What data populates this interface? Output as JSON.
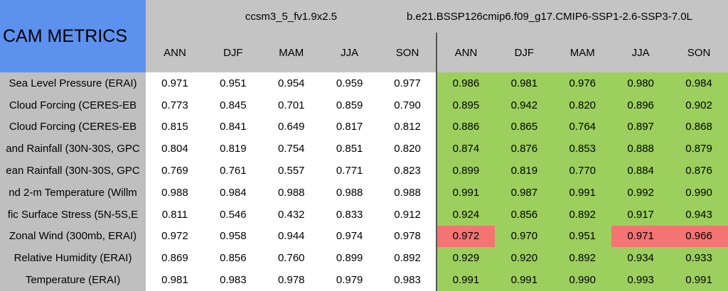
{
  "header": {
    "title": "CAM METRICS",
    "groups": [
      "ccsm3_5_fv1.9x2.5",
      "b.e21.BSSP126cmip6.f09_g17.CMIP6-SSP1-2.6-SSP3-7.0L"
    ],
    "seasons": [
      "ANN",
      "DJF",
      "MAM",
      "JJA",
      "SON",
      "ANN",
      "DJF",
      "MAM",
      "JJA",
      "SON"
    ]
  },
  "table": {
    "rows": [
      {
        "label": "Sea Level Pressure (ERAI)",
        "values": [
          "0.971",
          "0.951",
          "0.954",
          "0.959",
          "0.977",
          "0.986",
          "0.981",
          "0.976",
          "0.980",
          "0.984"
        ],
        "colors": [
          "#ffffff",
          "#ffffff",
          "#ffffff",
          "#ffffff",
          "#ffffff",
          "#9ccf5d",
          "#9ccf5d",
          "#9ccf5d",
          "#9ccf5d",
          "#9ccf5d"
        ]
      },
      {
        "label": "Cloud Forcing (CERES-EB",
        "values": [
          "0.773",
          "0.845",
          "0.701",
          "0.859",
          "0.790",
          "0.895",
          "0.942",
          "0.820",
          "0.896",
          "0.902"
        ],
        "colors": [
          "#ffffff",
          "#ffffff",
          "#ffffff",
          "#ffffff",
          "#ffffff",
          "#9ccf5d",
          "#9ccf5d",
          "#9ccf5d",
          "#9ccf5d",
          "#9ccf5d"
        ]
      },
      {
        "label": "Cloud Forcing (CERES-EB",
        "values": [
          "0.815",
          "0.841",
          "0.649",
          "0.817",
          "0.812",
          "0.886",
          "0.865",
          "0.764",
          "0.897",
          "0.868"
        ],
        "colors": [
          "#ffffff",
          "#ffffff",
          "#ffffff",
          "#ffffff",
          "#ffffff",
          "#9ccf5d",
          "#9ccf5d",
          "#9ccf5d",
          "#9ccf5d",
          "#9ccf5d"
        ]
      },
      {
        "label": "and Rainfall (30N-30S, GPC",
        "values": [
          "0.804",
          "0.819",
          "0.754",
          "0.851",
          "0.820",
          "0.874",
          "0.876",
          "0.853",
          "0.888",
          "0.879"
        ],
        "colors": [
          "#ffffff",
          "#ffffff",
          "#ffffff",
          "#ffffff",
          "#ffffff",
          "#9ccf5d",
          "#9ccf5d",
          "#9ccf5d",
          "#9ccf5d",
          "#9ccf5d"
        ]
      },
      {
        "label": "ean Rainfall (30N-30S, GPC",
        "values": [
          "0.769",
          "0.761",
          "0.557",
          "0.771",
          "0.823",
          "0.899",
          "0.819",
          "0.770",
          "0.884",
          "0.876"
        ],
        "colors": [
          "#ffffff",
          "#ffffff",
          "#ffffff",
          "#ffffff",
          "#ffffff",
          "#9ccf5d",
          "#9ccf5d",
          "#9ccf5d",
          "#9ccf5d",
          "#9ccf5d"
        ]
      },
      {
        "label": "nd 2-m Temperature (Willm",
        "values": [
          "0.988",
          "0.984",
          "0.988",
          "0.988",
          "0.988",
          "0.991",
          "0.987",
          "0.991",
          "0.992",
          "0.990"
        ],
        "colors": [
          "#ffffff",
          "#ffffff",
          "#ffffff",
          "#ffffff",
          "#ffffff",
          "#9ccf5d",
          "#9ccf5d",
          "#9ccf5d",
          "#9ccf5d",
          "#9ccf5d"
        ]
      },
      {
        "label": "fic Surface Stress (5N-5S,E",
        "values": [
          "0.811",
          "0.546",
          "0.432",
          "0.833",
          "0.912",
          "0.924",
          "0.856",
          "0.892",
          "0.917",
          "0.943"
        ],
        "colors": [
          "#ffffff",
          "#ffffff",
          "#ffffff",
          "#ffffff",
          "#ffffff",
          "#9ccf5d",
          "#9ccf5d",
          "#9ccf5d",
          "#9ccf5d",
          "#9ccf5d"
        ]
      },
      {
        "label": "Zonal Wind (300mb, ERAI)",
        "values": [
          "0.972",
          "0.958",
          "0.944",
          "0.974",
          "0.978",
          "0.972",
          "0.970",
          "0.951",
          "0.971",
          "0.966"
        ],
        "colors": [
          "#ffffff",
          "#ffffff",
          "#ffffff",
          "#ffffff",
          "#ffffff",
          "#f47373",
          "#9ccf5d",
          "#9ccf5d",
          "#f47373",
          "#f47373"
        ]
      },
      {
        "label": "Relative Humidity (ERAI)",
        "values": [
          "0.869",
          "0.856",
          "0.760",
          "0.899",
          "0.892",
          "0.929",
          "0.920",
          "0.892",
          "0.934",
          "0.933"
        ],
        "colors": [
          "#ffffff",
          "#ffffff",
          "#ffffff",
          "#ffffff",
          "#ffffff",
          "#9ccf5d",
          "#9ccf5d",
          "#9ccf5d",
          "#9ccf5d",
          "#9ccf5d"
        ]
      },
      {
        "label": "Temperature (ERAI)",
        "values": [
          "0.981",
          "0.983",
          "0.978",
          "0.979",
          "0.983",
          "0.991",
          "0.991",
          "0.990",
          "0.993",
          "0.991"
        ],
        "colors": [
          "#ffffff",
          "#ffffff",
          "#ffffff",
          "#ffffff",
          "#ffffff",
          "#9ccf5d",
          "#9ccf5d",
          "#9ccf5d",
          "#9ccf5d",
          "#9ccf5d"
        ]
      }
    ]
  }
}
